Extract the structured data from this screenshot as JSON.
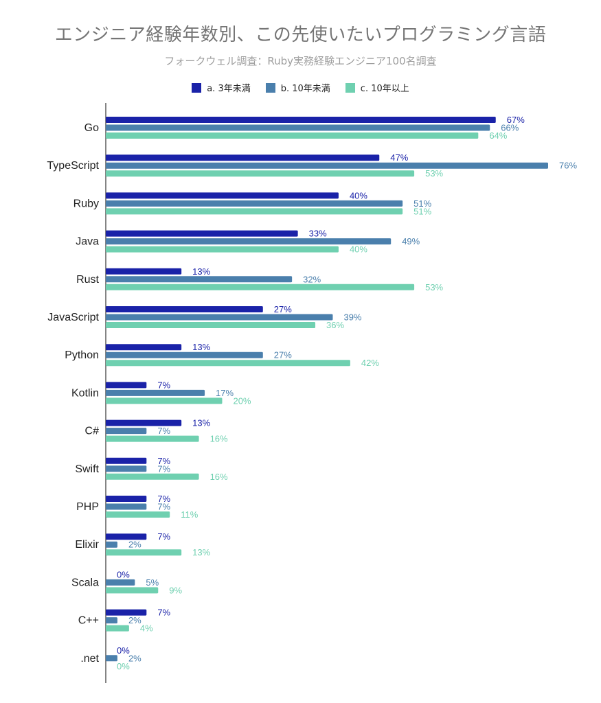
{
  "chart_data": {
    "type": "bar",
    "orientation": "horizontal",
    "title": "エンジニア経験年数別、この先使いたいプログラミング言語",
    "subtitle": "フォークウェル調査：Ruby実務経験エンジニア100名調査",
    "categories": [
      "Go",
      "TypeScript",
      "Ruby",
      "Java",
      "Rust",
      "JavaScript",
      "Python",
      "Kotlin",
      "C#",
      "Swift",
      "PHP",
      "Elixir",
      "Scala",
      "C++",
      ".net"
    ],
    "series": [
      {
        "name": "a. 3年未満",
        "color": "#1a22a8",
        "values": [
          67,
          47,
          40,
          33,
          13,
          27,
          13,
          7,
          13,
          7,
          7,
          7,
          0,
          7,
          0
        ]
      },
      {
        "name": "b. 10年未満",
        "color": "#4a7fac",
        "values": [
          66,
          76,
          51,
          49,
          32,
          39,
          27,
          17,
          7,
          7,
          7,
          2,
          5,
          2,
          2
        ]
      },
      {
        "name": "c. 10年以上",
        "color": "#6fd0b0",
        "values": [
          64,
          53,
          51,
          40,
          53,
          36,
          42,
          20,
          16,
          16,
          11,
          13,
          9,
          4,
          0
        ]
      }
    ],
    "value_suffix": "%",
    "xlim": [
      0,
      76
    ],
    "legend_position": "top-center"
  }
}
